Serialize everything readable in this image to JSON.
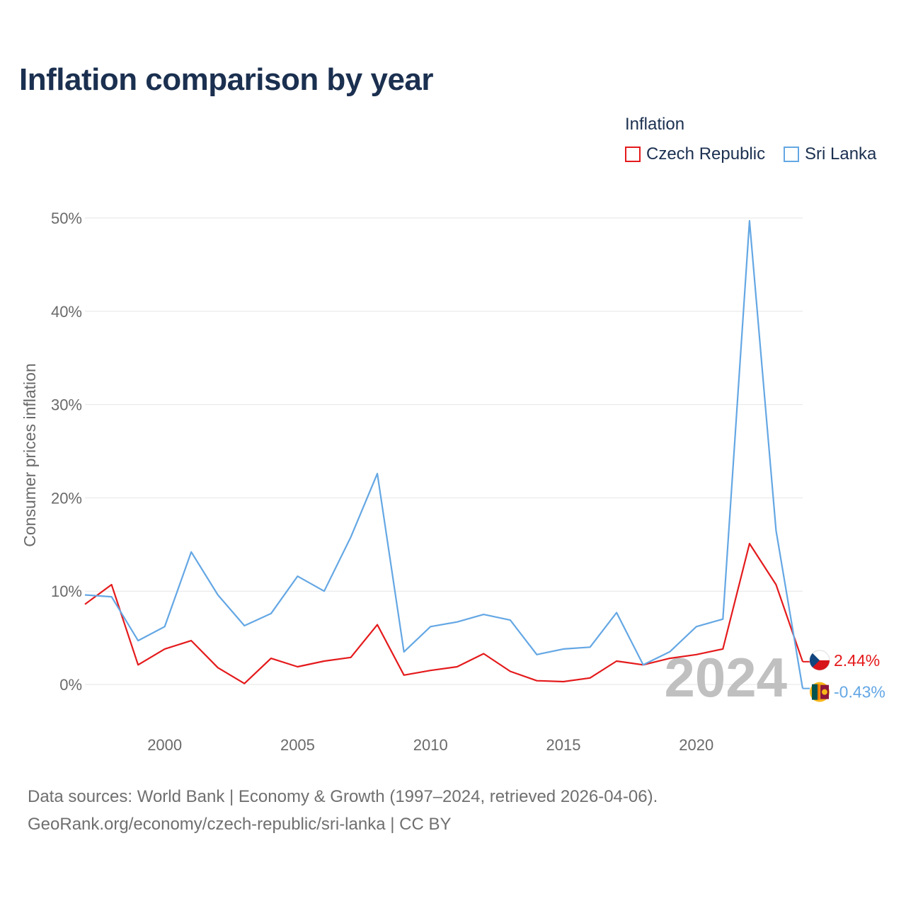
{
  "title": "Inflation comparison by year",
  "legend": {
    "title": "Inflation",
    "items": [
      {
        "name": "Czech Republic",
        "color": "#e41a1c"
      },
      {
        "name": "Sri Lanka",
        "color": "#64a7e4"
      }
    ]
  },
  "source": {
    "line1": "Data sources: World Bank | Economy & Growth (1997–2024, retrieved 2026-04-06).",
    "line2": "GeoRank.org/economy/czech-republic/sri-lanka | CC BY"
  },
  "chart_data": {
    "type": "line",
    "title": "Inflation comparison by year",
    "xlabel": "",
    "ylabel": "Consumer prices inflation",
    "xlim": [
      1997,
      2024
    ],
    "ylim": [
      0,
      50
    ],
    "x_ticks": [
      2000,
      2005,
      2010,
      2015,
      2020
    ],
    "y_ticks": [
      0,
      10,
      20,
      30,
      40,
      50
    ],
    "y_tick_labels": [
      "0%",
      "10%",
      "20%",
      "30%",
      "40%",
      "50%"
    ],
    "grid": true,
    "legend_position": "top-right",
    "current_year_label": "2024",
    "x": [
      1997,
      1998,
      1999,
      2000,
      2001,
      2002,
      2003,
      2004,
      2005,
      2006,
      2007,
      2008,
      2009,
      2010,
      2011,
      2012,
      2013,
      2014,
      2015,
      2016,
      2017,
      2018,
      2019,
      2020,
      2021,
      2022,
      2023,
      2024
    ],
    "series": [
      {
        "name": "Czech Republic",
        "color": "#e41a1c",
        "end_label": "2.44%",
        "values": [
          8.6,
          10.7,
          2.1,
          3.8,
          4.7,
          1.8,
          0.1,
          2.8,
          1.9,
          2.5,
          2.9,
          6.4,
          1.0,
          1.5,
          1.9,
          3.3,
          1.4,
          0.4,
          0.3,
          0.7,
          2.5,
          2.1,
          2.8,
          3.2,
          3.8,
          15.1,
          10.7,
          2.44
        ]
      },
      {
        "name": "Sri Lanka",
        "color": "#64a7e4",
        "end_label": "-0.43%",
        "values": [
          9.6,
          9.4,
          4.7,
          6.2,
          14.2,
          9.6,
          6.3,
          7.6,
          11.6,
          10.0,
          15.8,
          22.6,
          3.5,
          6.2,
          6.7,
          7.5,
          6.9,
          3.2,
          3.8,
          4.0,
          7.7,
          2.1,
          3.5,
          6.2,
          7.0,
          49.7,
          16.5,
          -0.43
        ]
      }
    ]
  }
}
